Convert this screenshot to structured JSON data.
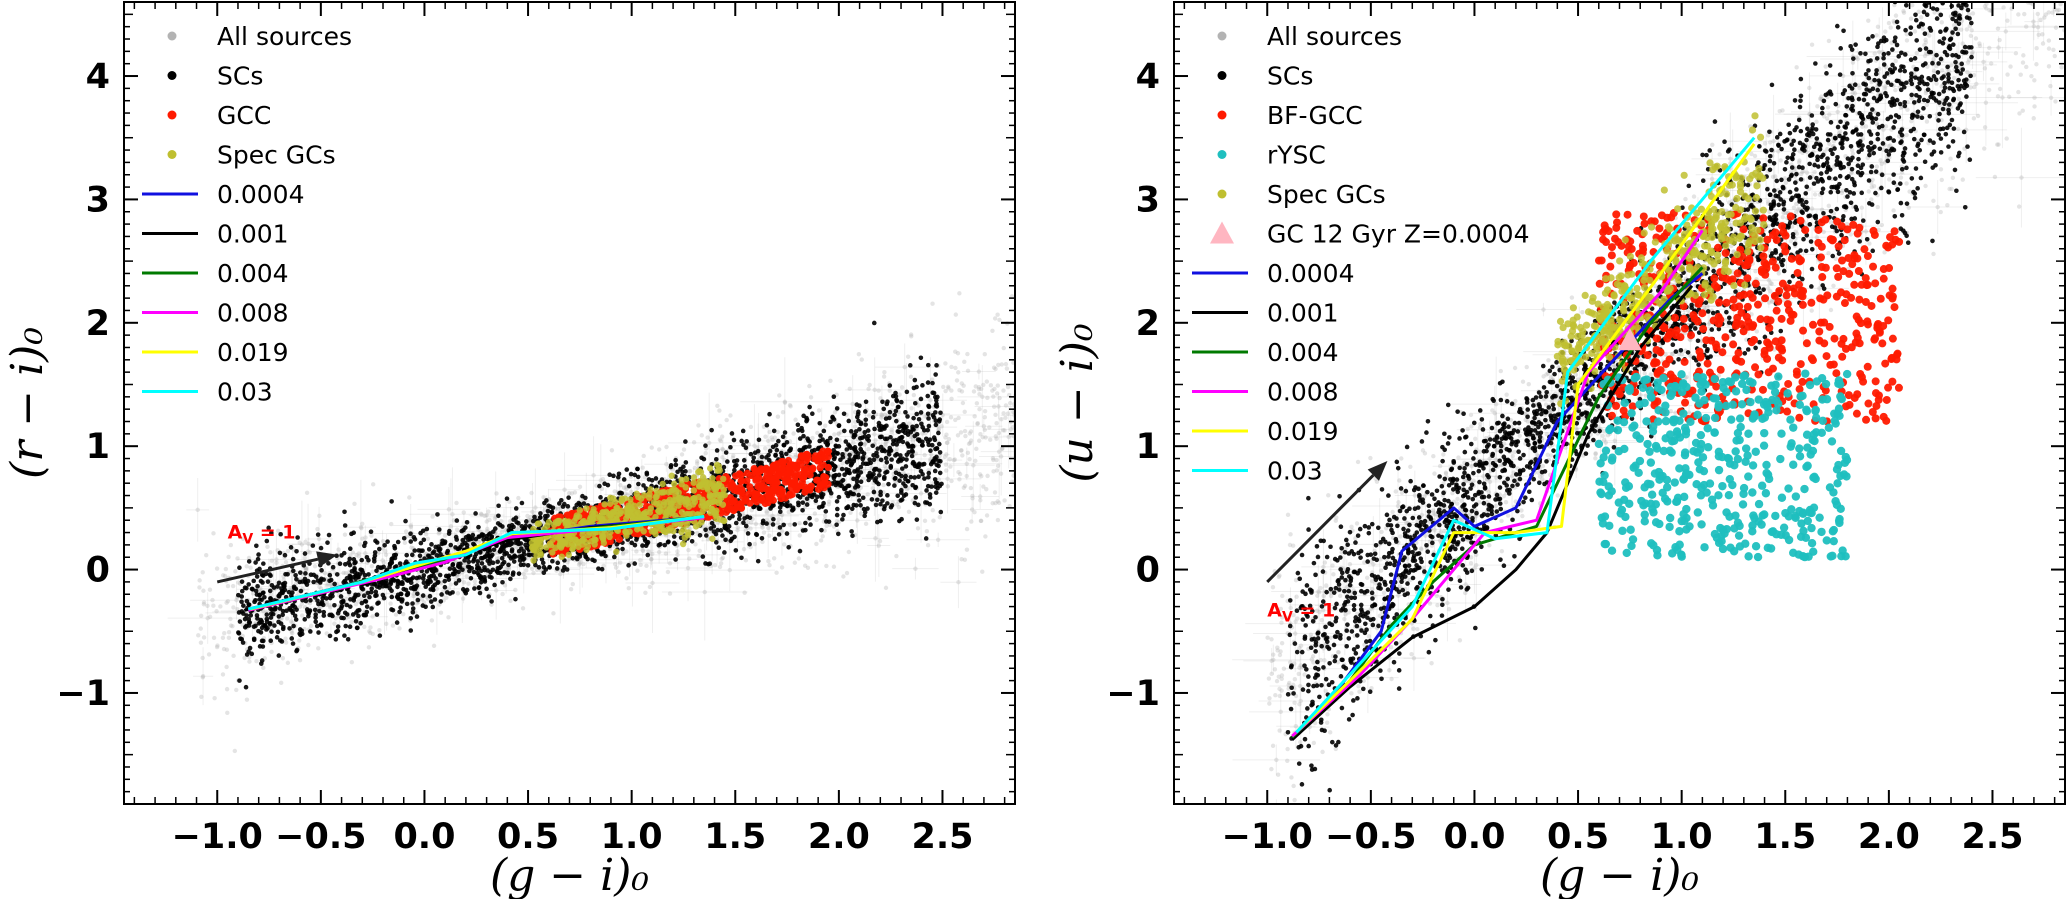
{
  "colors": {
    "all_sources": "#b3b3b3",
    "scs": "#000000",
    "gcc": "#ff1a00",
    "bf_gcc": "#ff1a00",
    "ryssc": "#1fbfbf",
    "spec_gcs": "#bfbf30",
    "gc_marker": "#ffb6c1",
    "z0004": "#1010e0",
    "z001": "#000000",
    "z004": "#007a00",
    "z008": "#ff00ff",
    "z019": "#ffff00",
    "z03": "#00ffff",
    "arrow": "#222222",
    "av_label": "#ff0000"
  },
  "chart_data": [
    {
      "type": "scatter",
      "xlabel": "(g − i)₀",
      "ylabel": "(r − i)₀",
      "xlim": [
        -1.45,
        2.85
      ],
      "ylim": [
        -1.9,
        4.6
      ],
      "xticks": [
        -1.0,
        -0.5,
        0.0,
        0.5,
        1.0,
        1.5,
        2.0,
        2.5
      ],
      "xtick_labels": [
        "−1.0",
        "−0.5",
        "0.0",
        "0.5",
        "1.0",
        "1.5",
        "2.0",
        "2.5"
      ],
      "yticks": [
        -1,
        0,
        1,
        2,
        3,
        4
      ],
      "ytick_labels": [
        "−1",
        "0",
        "1",
        "2",
        "3",
        "4"
      ],
      "legend": [
        {
          "label": "All sources",
          "kind": "dot",
          "color": "#b3b3b3"
        },
        {
          "label": "SCs",
          "kind": "dot",
          "color": "#000000"
        },
        {
          "label": "GCC",
          "kind": "dot",
          "color": "#ff1a00"
        },
        {
          "label": "Spec GCs",
          "kind": "dot",
          "color": "#bfbf30"
        },
        {
          "label": "0.0004",
          "kind": "line",
          "color": "#1010e0"
        },
        {
          "label": "0.001",
          "kind": "line",
          "color": "#000000"
        },
        {
          "label": "0.004",
          "kind": "line",
          "color": "#007a00"
        },
        {
          "label": "0.008",
          "kind": "line",
          "color": "#ff00ff"
        },
        {
          "label": "0.019",
          "kind": "line",
          "color": "#ffff00"
        },
        {
          "label": "0.03",
          "kind": "line",
          "color": "#00ffff"
        }
      ],
      "reddening_arrow": {
        "from": [
          -1.0,
          -0.1
        ],
        "to": [
          -0.42,
          0.12
        ],
        "label": "A",
        "label_sub": "V",
        "label_tail": " = 1",
        "label_pos": [
          -0.95,
          0.25
        ]
      },
      "clouds": {
        "all_sources": {
          "x_range": [
            -1.1,
            2.85
          ],
          "slope": 0.42,
          "intercept": 0.0,
          "scatter": 0.28
        },
        "scs": {
          "x_range": [
            -0.9,
            2.5
          ],
          "slope": 0.42,
          "intercept": 0.0,
          "scatter": 0.2
        },
        "gcc_box": {
          "x_range": [
            0.6,
            1.95
          ],
          "slope": 0.42,
          "intercept": 0.0,
          "half_width": 0.16
        },
        "spec_gcs": {
          "x_range": [
            0.5,
            1.45
          ],
          "slope": 0.42,
          "intercept": 0.0,
          "scatter": 0.12
        }
      },
      "tracks": [
        {
          "name": "0.0004",
          "color": "#1010e0",
          "points": [
            [
              -0.85,
              -0.32
            ],
            [
              -0.5,
              -0.18
            ],
            [
              -0.2,
              -0.05
            ],
            [
              0.0,
              0.03
            ],
            [
              0.4,
              0.25
            ],
            [
              0.8,
              0.35
            ],
            [
              1.3,
              0.42
            ]
          ]
        },
        {
          "name": "0.001",
          "color": "#000000",
          "points": [
            [
              -0.87,
              -0.33
            ],
            [
              -0.5,
              -0.19
            ],
            [
              -0.2,
              -0.06
            ],
            [
              0.0,
              0.02
            ],
            [
              0.4,
              0.24
            ],
            [
              0.8,
              0.34
            ],
            [
              1.3,
              0.41
            ]
          ]
        },
        {
          "name": "0.004",
          "color": "#007a00",
          "points": [
            [
              -0.84,
              -0.32
            ],
            [
              -0.4,
              -0.14
            ],
            [
              -0.1,
              0.0
            ],
            [
              0.1,
              0.08
            ],
            [
              0.42,
              0.27
            ],
            [
              0.9,
              0.35
            ],
            [
              1.35,
              0.43
            ]
          ]
        },
        {
          "name": "0.008",
          "color": "#ff00ff",
          "points": [
            [
              -0.85,
              -0.33
            ],
            [
              -0.4,
              -0.15
            ],
            [
              -0.15,
              -0.05
            ],
            [
              0.1,
              0.06
            ],
            [
              0.4,
              0.26
            ],
            [
              0.9,
              0.34
            ],
            [
              1.35,
              0.42
            ]
          ]
        },
        {
          "name": "0.019",
          "color": "#ffff00",
          "points": [
            [
              -0.84,
              -0.32
            ],
            [
              -0.3,
              -0.1
            ],
            [
              0.0,
              0.05
            ],
            [
              0.2,
              0.15
            ],
            [
              0.42,
              0.29
            ],
            [
              0.9,
              0.34
            ],
            [
              1.35,
              0.43
            ]
          ]
        },
        {
          "name": "0.03",
          "color": "#00ffff",
          "points": [
            [
              -0.85,
              -0.32
            ],
            [
              -0.3,
              -0.1
            ],
            [
              -0.05,
              0.05
            ],
            [
              0.2,
              0.12
            ],
            [
              0.42,
              0.3
            ],
            [
              0.9,
              0.33
            ],
            [
              1.35,
              0.43
            ]
          ]
        }
      ]
    },
    {
      "type": "scatter",
      "xlabel": "(g − i)₀",
      "ylabel": "(u − i)₀",
      "xlim": [
        -1.45,
        2.85
      ],
      "ylim": [
        -1.9,
        4.6
      ],
      "xticks": [
        -1.0,
        -0.5,
        0.0,
        0.5,
        1.0,
        1.5,
        2.0,
        2.5
      ],
      "xtick_labels": [
        "−1.0",
        "−0.5",
        "0.0",
        "0.5",
        "1.0",
        "1.5",
        "2.0",
        "2.5"
      ],
      "yticks": [
        -1,
        0,
        1,
        2,
        3,
        4
      ],
      "ytick_labels": [
        "−1",
        "0",
        "1",
        "2",
        "3",
        "4"
      ],
      "legend": [
        {
          "label": "All sources",
          "kind": "dot",
          "color": "#b3b3b3"
        },
        {
          "label": "SCs",
          "kind": "dot",
          "color": "#000000"
        },
        {
          "label": "BF-GCC",
          "kind": "dot",
          "color": "#ff1a00"
        },
        {
          "label": "rYSC",
          "kind": "dot",
          "color": "#1fbfbf"
        },
        {
          "label": "Spec GCs",
          "kind": "dot",
          "color": "#bfbf30"
        },
        {
          "label": "GC 12 Gyr Z=0.0004",
          "kind": "triangle",
          "color": "#ffb6c1"
        },
        {
          "label": "0.0004",
          "kind": "line",
          "color": "#1010e0"
        },
        {
          "label": "0.001",
          "kind": "line",
          "color": "#000000"
        },
        {
          "label": "0.004",
          "kind": "line",
          "color": "#007a00"
        },
        {
          "label": "0.008",
          "kind": "line",
          "color": "#ff00ff"
        },
        {
          "label": "0.019",
          "kind": "line",
          "color": "#ffff00"
        },
        {
          "label": "0.03",
          "kind": "line",
          "color": "#00ffff"
        }
      ],
      "reddening_arrow": {
        "from": [
          -1.0,
          -0.1
        ],
        "to": [
          -0.42,
          0.88
        ],
        "label": "A",
        "label_sub": "V",
        "label_tail": " = 1",
        "label_pos": [
          -1.0,
          -0.38
        ]
      },
      "gc_marker": {
        "x": 0.75,
        "y": 1.85
      },
      "clouds": {
        "all_sources": {
          "x_range": [
            -1.0,
            2.85
          ],
          "slope": 1.55,
          "intercept": 0.6,
          "scatter": 0.45
        },
        "scs": {
          "x_range": [
            -0.9,
            2.4
          ],
          "slope": 1.55,
          "intercept": 0.6,
          "scatter": 0.4
        },
        "bf_gcc": {
          "x_range": [
            0.6,
            2.05
          ],
          "y_range": [
            1.2,
            2.9
          ]
        },
        "ryssc": {
          "x_range": [
            0.6,
            1.8
          ],
          "y_range": [
            0.1,
            1.6
          ]
        },
        "spec_gcs": {
          "x_range": [
            0.4,
            1.4
          ],
          "slope": 1.3,
          "intercept": 1.2,
          "scatter": 0.28
        }
      },
      "tracks": [
        {
          "name": "0.0004",
          "color": "#1010e0",
          "points": [
            [
              -0.88,
              -1.38
            ],
            [
              -0.65,
              -0.95
            ],
            [
              -0.45,
              -0.5
            ],
            [
              -0.35,
              0.15
            ],
            [
              -0.1,
              0.5
            ],
            [
              0.0,
              0.35
            ],
            [
              0.2,
              0.5
            ],
            [
              0.4,
              1.2
            ],
            [
              0.7,
              1.75
            ],
            [
              0.95,
              2.2
            ],
            [
              1.1,
              2.4
            ]
          ]
        },
        {
          "name": "0.001",
          "color": "#000000",
          "points": [
            [
              -0.88,
              -1.38
            ],
            [
              -0.6,
              -0.95
            ],
            [
              -0.3,
              -0.55
            ],
            [
              0.0,
              -0.3
            ],
            [
              0.2,
              0.0
            ],
            [
              0.35,
              0.3
            ],
            [
              0.55,
              1.1
            ],
            [
              0.8,
              1.8
            ],
            [
              1.05,
              2.3
            ]
          ]
        },
        {
          "name": "0.004",
          "color": "#007a00",
          "points": [
            [
              -0.88,
              -1.36
            ],
            [
              -0.6,
              -0.9
            ],
            [
              -0.4,
              -0.45
            ],
            [
              -0.2,
              -0.1
            ],
            [
              0.0,
              0.2
            ],
            [
              0.3,
              0.35
            ],
            [
              0.6,
              1.4
            ],
            [
              0.85,
              2.0
            ],
            [
              1.1,
              2.45
            ]
          ]
        },
        {
          "name": "0.008",
          "color": "#ff00ff",
          "points": [
            [
              -0.88,
              -1.35
            ],
            [
              -0.55,
              -0.85
            ],
            [
              -0.3,
              -0.4
            ],
            [
              -0.05,
              0.1
            ],
            [
              0.05,
              0.3
            ],
            [
              0.3,
              0.4
            ],
            [
              0.55,
              1.6
            ],
            [
              0.9,
              2.25
            ],
            [
              1.1,
              2.75
            ]
          ]
        },
        {
          "name": "0.019",
          "color": "#ffff00",
          "points": [
            [
              -0.85,
              -1.3
            ],
            [
              -0.6,
              -0.9
            ],
            [
              -0.3,
              -0.4
            ],
            [
              -0.1,
              0.3
            ],
            [
              0.2,
              0.3
            ],
            [
              0.42,
              0.35
            ],
            [
              0.5,
              1.5
            ],
            [
              0.9,
              2.4
            ],
            [
              1.35,
              3.45
            ]
          ]
        },
        {
          "name": "0.03",
          "color": "#00ffff",
          "points": [
            [
              -0.86,
              -1.32
            ],
            [
              -0.6,
              -0.85
            ],
            [
              -0.3,
              -0.3
            ],
            [
              -0.1,
              0.4
            ],
            [
              0.1,
              0.25
            ],
            [
              0.35,
              0.3
            ],
            [
              0.45,
              1.6
            ],
            [
              0.85,
              2.5
            ],
            [
              1.35,
              3.5
            ]
          ]
        }
      ]
    }
  ]
}
